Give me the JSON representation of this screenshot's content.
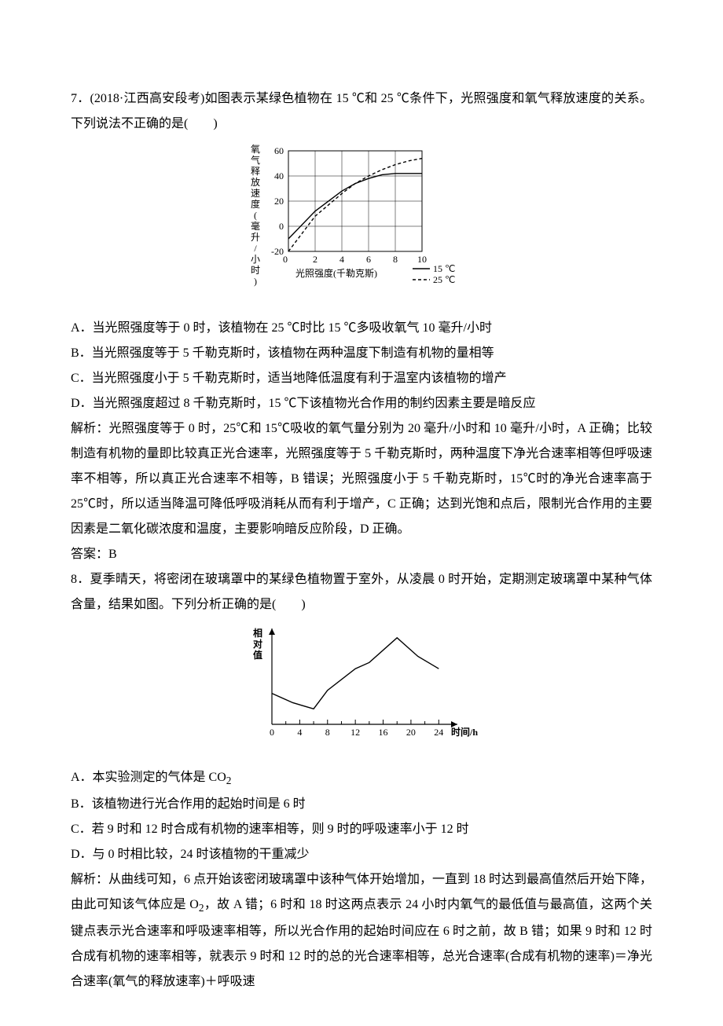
{
  "q7": {
    "stem": "7．(2018·江西高安段考)如图表示某绿色植物在 15 ℃和 25 ℃条件下，光照强度和氧气释放速度的关系。下列说法不正确的是(　　)",
    "chart": {
      "type": "line",
      "y_label_vertical": "氧气释放速度(毫升/小时)",
      "x_label": "光照强度(千勒克斯)",
      "legend": [
        {
          "label": "15 ℃",
          "dash": "0",
          "color": "#000000"
        },
        {
          "label": "25 ℃",
          "dash": "4,3",
          "color": "#000000"
        }
      ],
      "x_ticks": [
        0,
        2,
        4,
        6,
        8,
        10
      ],
      "y_ticks": [
        -20,
        0,
        20,
        40,
        60
      ],
      "xlim": [
        0,
        10
      ],
      "ylim": [
        -20,
        60
      ],
      "series_15": {
        "points": [
          [
            0,
            -10
          ],
          [
            2,
            12
          ],
          [
            4,
            28
          ],
          [
            5,
            34
          ],
          [
            6,
            38
          ],
          [
            7,
            41
          ],
          [
            8,
            42
          ],
          [
            9,
            42
          ],
          [
            10,
            42
          ]
        ],
        "dash": "0"
      },
      "series_25": {
        "points": [
          [
            0,
            -20
          ],
          [
            2,
            8
          ],
          [
            4,
            26
          ],
          [
            5,
            34
          ],
          [
            6,
            40
          ],
          [
            7,
            45
          ],
          [
            8,
            49
          ],
          [
            9,
            52
          ],
          [
            10,
            54
          ]
        ],
        "dash": "4,3"
      },
      "axis_color": "#000000",
      "grid_color": "#000000",
      "background": "#ffffff",
      "label_fontsize": 12
    },
    "options": {
      "A": "A．当光照强度等于 0 时，该植物在 25 ℃时比 15 ℃多吸收氧气 10 毫升/小时",
      "B": "B．当光照强度等于 5 千勒克斯时，该植物在两种温度下制造有机物的量相等",
      "C": "C．当光照强度小于 5 千勒克斯时，适当地降低温度有利于温室内该植物的增产",
      "D": "D．当光照强度超过 8 千勒克斯时，15 ℃下该植物光合作用的制约因素主要是暗反应"
    },
    "explain": "解析：光照强度等于 0 时，25℃和 15℃吸收的氧气量分别为 20 毫升/小时和 10 毫升/小时，A 正确；比较制造有机物的量即比较真正光合速率，光照强度等于 5 千勒克斯时，两种温度下净光合速率相等但呼吸速率不相等，所以真正光合速率不相等，B 错误；光照强度小于 5 千勒克斯时，15℃时的净光合速率高于 25℃时，所以适当降温可降低呼吸消耗从而有利于增产，C 正确；达到光饱和点后，限制光合作用的主要因素是二氧化碳浓度和温度，主要影响暗反应阶段，D 正确。",
    "answer": "答案：B"
  },
  "q8": {
    "stem": "8．夏季晴天，将密闭在玻璃罩中的某绿色植物置于室外，从凌晨 0 时开始，定期测定玻璃罩中某种气体含量，结果如图。下列分析正确的是(　　)",
    "chart": {
      "type": "line",
      "y_label_vertical": "相对值",
      "x_label": "时间/h",
      "x_ticks": [
        0,
        4,
        8,
        12,
        16,
        20,
        24
      ],
      "x_minor": [
        2,
        6,
        10,
        14,
        18,
        22
      ],
      "xlim": [
        0,
        26
      ],
      "points": [
        [
          0,
          20
        ],
        [
          3,
          14
        ],
        [
          6,
          10
        ],
        [
          8,
          22
        ],
        [
          12,
          36
        ],
        [
          14,
          40
        ],
        [
          18,
          56
        ],
        [
          21,
          44
        ],
        [
          24,
          36
        ]
      ],
      "axis_color": "#000000",
      "background": "#ffffff",
      "label_fontsize": 12,
      "line_color": "#000000"
    },
    "options": {
      "A": "A．本实验测定的气体是 CO",
      "A_sub": "2",
      "B": "B．该植物进行光合作用的起始时间是 6 时",
      "C": "C．若 9 时和 12 时合成有机物的速率相等，则 9 时的呼吸速率小于 12 时",
      "D": "D．与 0 时相比较，24 时该植物的干重减少"
    },
    "explain": "解析：从曲线可知，6 点开始该密闭玻璃罩中该种气体开始增加，一直到 18 时达到最高值然后开始下降，由此可知该气体应是 O",
    "explain_sub": "2",
    "explain2": "，故 A 错；6 时和 18 时这两点表示 24 小时内氧气的最低值与最高值，这两个关键点表示光合速率和呼吸速率相等，所以光合作用的起始时间应在 6 时之前，故 B 错；如果 9 时和 12 时合成有机物的速率相等，就表示 9 时和 12 时的总的光合速率相等，总光合速率(合成有机物的速率)＝净光合速率(氧气的释放速率)＋呼吸速"
  }
}
